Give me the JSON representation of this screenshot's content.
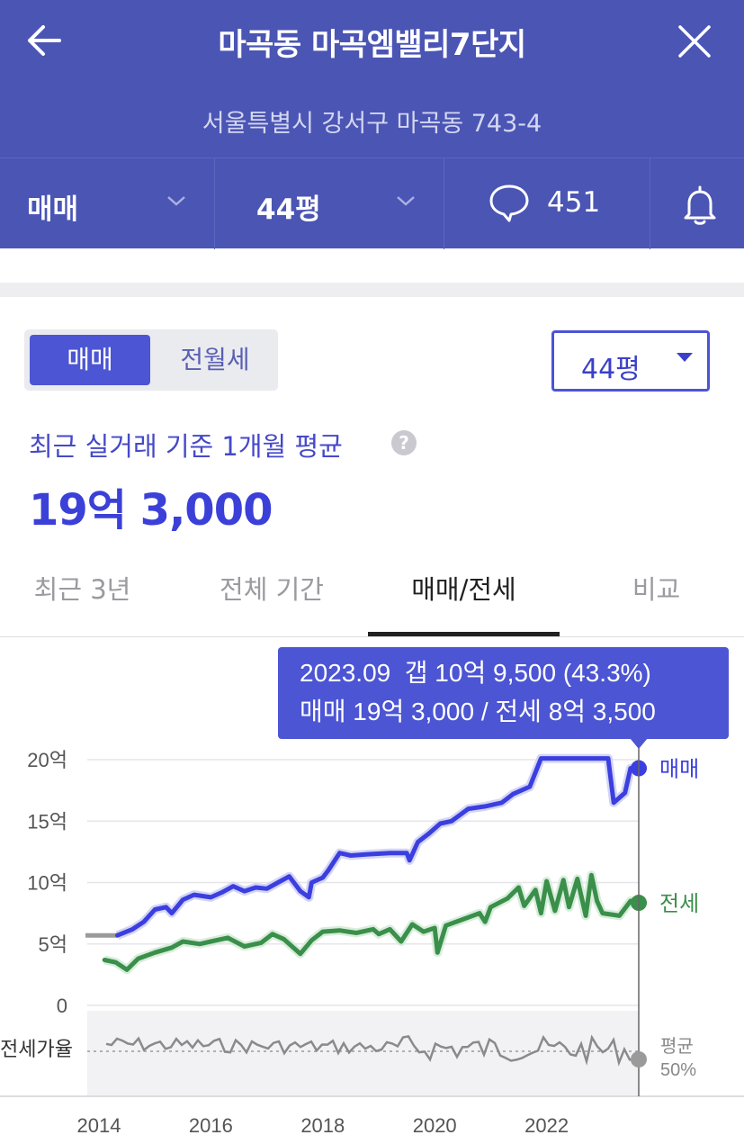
{
  "header": {
    "title": "마곡동 마곡엠밸리7단지",
    "address": "서울특별시 강서구 마곡동 743-4",
    "icons": {
      "back": "arrow-left-icon",
      "close": "close-icon",
      "comment": "speech-bubble-icon",
      "alarm": "bell-icon"
    },
    "deal_type": "매매",
    "area": "44평",
    "comment_count": "451"
  },
  "toggle": {
    "active": "매매",
    "inactive": "전월세"
  },
  "area_select": {
    "value": "44평"
  },
  "average": {
    "label": "최근 실거래 기준 1개월 평균",
    "price": "19억 3,000"
  },
  "tabs": [
    {
      "label": "최근 3년",
      "active": false
    },
    {
      "label": "전체 기간",
      "active": false
    },
    {
      "label": "매매/전세",
      "active": true
    },
    {
      "label": "비교",
      "active": false
    }
  ],
  "tooltip": {
    "line1": "2023.09  갭 10억 9,500 (43.3%)",
    "line2": "매매 19억 3,000 / 전세 8억 3,500"
  },
  "colors": {
    "header": "#4b55b4",
    "accent": "#4c55d3",
    "sale": "#3b3fe0",
    "jeonse": "#3a8f4a",
    "ratio": "#888888"
  },
  "chart_data": {
    "type": "line",
    "x_ticks": [
      "2014",
      "2016",
      "2018",
      "2020",
      "2022"
    ],
    "y_ticks": [
      "20억",
      "15억",
      "10억",
      "5억",
      "0"
    ],
    "ylim": [
      0,
      20
    ],
    "unit": "억",
    "ratio_label": "전세가율",
    "ratio_avg_label": [
      "평균",
      "50%"
    ],
    "series": [
      {
        "name": "매매",
        "x": [
          2014.33,
          2014.6,
          2014.8,
          2015.0,
          2015.2,
          2015.3,
          2015.5,
          2015.7,
          2016.0,
          2016.2,
          2016.4,
          2016.6,
          2016.8,
          2017.0,
          2017.2,
          2017.4,
          2017.6,
          2017.75,
          2017.8,
          2018.0,
          2018.1,
          2018.3,
          2018.5,
          2018.8,
          2019.2,
          2019.5,
          2019.55,
          2019.7,
          2019.9,
          2020.1,
          2020.3,
          2020.6,
          2020.9,
          2021.2,
          2021.4,
          2021.7,
          2021.9,
          2022.2,
          2022.5,
          2022.8,
          2023.1,
          2023.2,
          2023.4,
          2023.5,
          2023.75
        ],
        "values": [
          5.7,
          6.2,
          6.8,
          7.8,
          8.0,
          7.5,
          8.6,
          9.0,
          8.8,
          9.2,
          9.7,
          9.3,
          9.6,
          9.5,
          10.0,
          10.5,
          9.3,
          8.8,
          10.0,
          10.4,
          11.0,
          12.4,
          12.2,
          12.3,
          12.4,
          12.4,
          11.8,
          13.3,
          14.0,
          14.8,
          15.0,
          16.0,
          16.2,
          16.5,
          17.2,
          17.8,
          20.1,
          20.1,
          20.1,
          20.1,
          20.1,
          16.5,
          17.3,
          19.3,
          19.3
        ]
      },
      {
        "name": "전세",
        "x": [
          2014.1,
          2014.3,
          2014.5,
          2014.7,
          2015.0,
          2015.3,
          2015.5,
          2015.8,
          2016.0,
          2016.3,
          2016.6,
          2016.9,
          2017.1,
          2017.3,
          2017.6,
          2017.8,
          2018.0,
          2018.3,
          2018.6,
          2018.9,
          2019.0,
          2019.2,
          2019.4,
          2019.6,
          2019.8,
          2020.0,
          2020.05,
          2020.2,
          2020.5,
          2020.8,
          2020.9,
          2021.0,
          2021.3,
          2021.5,
          2021.6,
          2021.8,
          2021.9,
          2022.0,
          2022.15,
          2022.3,
          2022.4,
          2022.55,
          2022.7,
          2022.8,
          2022.9,
          2023.0,
          2023.3,
          2023.5,
          2023.75
        ],
        "values": [
          3.7,
          3.5,
          2.9,
          3.8,
          4.3,
          4.7,
          5.2,
          5.0,
          5.2,
          5.5,
          4.8,
          5.1,
          5.8,
          5.4,
          4.2,
          5.3,
          6.0,
          6.1,
          5.9,
          6.2,
          5.8,
          6.2,
          5.2,
          6.6,
          6.0,
          6.3,
          4.3,
          6.5,
          7.0,
          7.5,
          6.8,
          8.0,
          8.7,
          9.6,
          8.1,
          9.4,
          7.5,
          10.1,
          7.7,
          10.2,
          8.0,
          10.3,
          7.3,
          10.6,
          8.5,
          7.5,
          7.3,
          8.5,
          8.35
        ]
      }
    ]
  }
}
